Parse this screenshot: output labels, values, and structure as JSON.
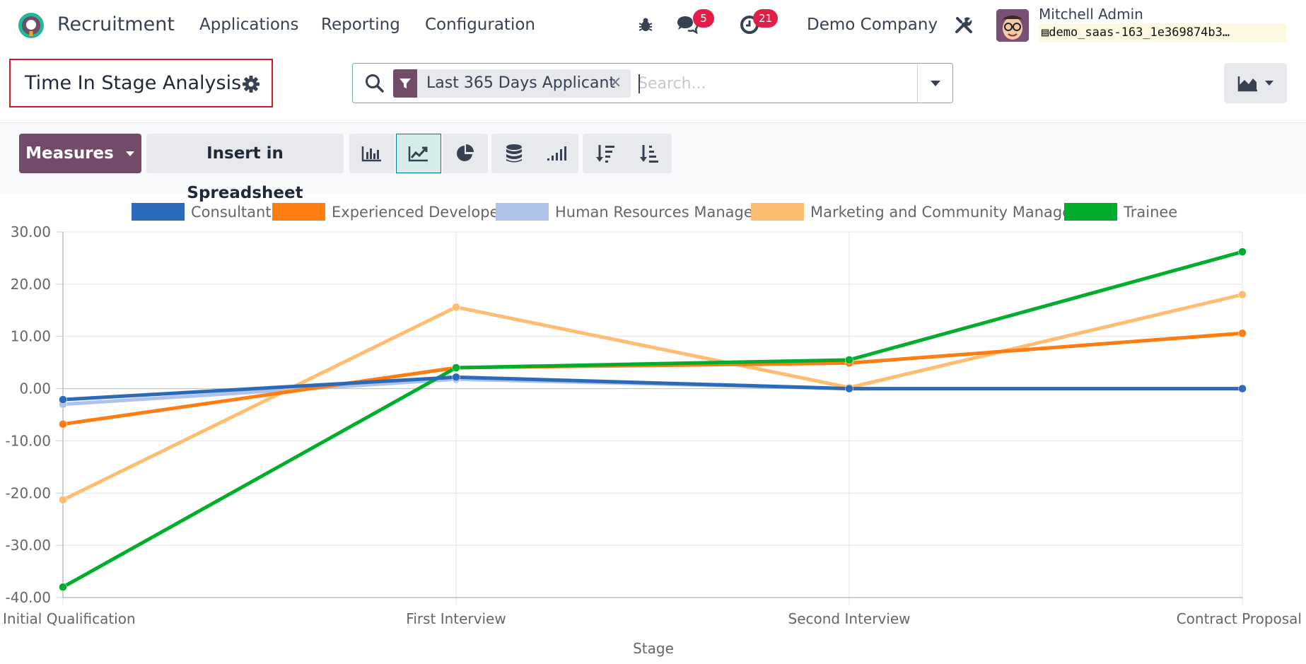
{
  "navbar": {
    "app_title": "Recruitment",
    "menu": [
      "Applications",
      "Reporting",
      "Configuration"
    ],
    "messages_count": "5",
    "activities_count": "21",
    "company": "Demo Company",
    "user_name": "Mitchell Admin",
    "database": "demo_saas-163_1e369874b3…",
    "icons": [
      "odoo-logo-icon",
      "bug-icon",
      "chat-icon",
      "clock-icon",
      "tools-icon",
      "database-icon"
    ]
  },
  "control_panel": {
    "title": "Time In Stage Analysis",
    "facet_label": "Last 365 Days Applicant",
    "facet_close": "×",
    "search_placeholder": "Search...",
    "measures_label": "Measures",
    "insert_label": "Insert in Spreadsheet"
  },
  "colors": {
    "brand": "#714b67",
    "accent": "#017e84",
    "badge": "#e11d48"
  },
  "chart_data": {
    "type": "line",
    "title": "",
    "xlabel": "Stage",
    "ylabel": "",
    "categories": [
      "Initial Qualification",
      "First Interview",
      "Second Interview",
      "Contract Proposal"
    ],
    "ylim": [
      -40,
      30
    ],
    "yticks": [
      "30.00",
      "20.00",
      "10.00",
      "0.00",
      "-10.00",
      "-20.00",
      "-30.00",
      "-40.00"
    ],
    "grid": true,
    "legend_position": "top",
    "series": [
      {
        "name": "Consultant",
        "color": "#2a6ab8",
        "values": [
          -2.1,
          2.2,
          0.0,
          0.0
        ]
      },
      {
        "name": "Experienced Developer",
        "color": "#ff7c11",
        "values": [
          -6.8,
          4.0,
          4.9,
          10.6
        ]
      },
      {
        "name": "Human Resources Manager",
        "color": "#aec2ea",
        "values": [
          -3.0,
          1.8,
          0.0,
          0.0
        ]
      },
      {
        "name": "Marketing and Community Manage...",
        "color": "#ffbd71",
        "values": [
          -21.3,
          15.6,
          0.2,
          18.0
        ]
      },
      {
        "name": "Trainee",
        "color": "#00ae2c",
        "values": [
          -38.0,
          4.0,
          5.5,
          26.2
        ]
      }
    ]
  }
}
